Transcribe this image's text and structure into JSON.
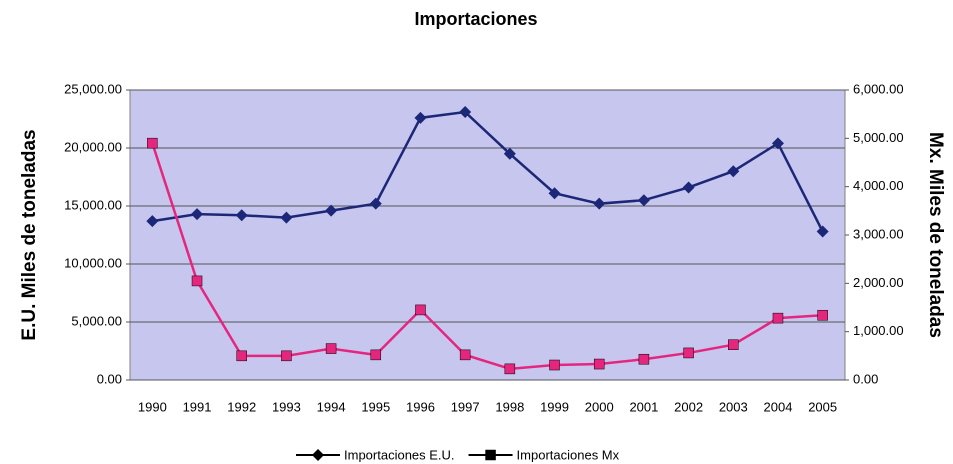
{
  "chart_data": {
    "type": "line",
    "title": "Importaciones",
    "y_label": "E.U. Miles de toneladas",
    "y2_label": "Mx. Miles de toneladas",
    "categories": [
      "1990",
      "1991",
      "1992",
      "1993",
      "1994",
      "1995",
      "1996",
      "1997",
      "1998",
      "1999",
      "2000",
      "2001",
      "2002",
      "2003",
      "2004",
      "2005"
    ],
    "series": [
      {
        "name": "Importaciones E.U.",
        "color": "#1c2778",
        "marker": "diamond",
        "values": [
          13700,
          14300,
          14200,
          14000,
          14600,
          15200,
          22600,
          23100,
          19500,
          16100,
          15200,
          15500,
          16600,
          18000,
          20400,
          12800
        ]
      },
      {
        "name": "Importaciones Mx",
        "color": "#e5267f",
        "marker": "square",
        "axis": "y2",
        "values": [
          4900,
          2050,
          500,
          500,
          650,
          520,
          1450,
          520,
          230,
          310,
          330,
          430,
          560,
          730,
          1280,
          1340
        ]
      }
    ],
    "ylim": [
      0,
      25000
    ],
    "yticks": [
      {
        "value": 0,
        "label": "0.00"
      },
      {
        "value": 5000,
        "label": "5,000.00"
      },
      {
        "value": 10000,
        "label": "10,000.00"
      },
      {
        "value": 15000,
        "label": "15,000.00"
      },
      {
        "value": 20000,
        "label": "20,000.00"
      },
      {
        "value": 25000,
        "label": "25,000.00"
      }
    ],
    "y2lim": [
      0,
      6000
    ],
    "y2ticks": [
      {
        "value": 0,
        "label": "0.00"
      },
      {
        "value": 1000,
        "label": "1,000.00"
      },
      {
        "value": 2000,
        "label": "2,000.00"
      },
      {
        "value": 3000,
        "label": "3,000.00"
      },
      {
        "value": 4000,
        "label": "4,000.00"
      },
      {
        "value": 5000,
        "label": "5,000.00"
      },
      {
        "value": 6000,
        "label": "6,000.00"
      }
    ],
    "grid": true,
    "legend": "bottom"
  }
}
